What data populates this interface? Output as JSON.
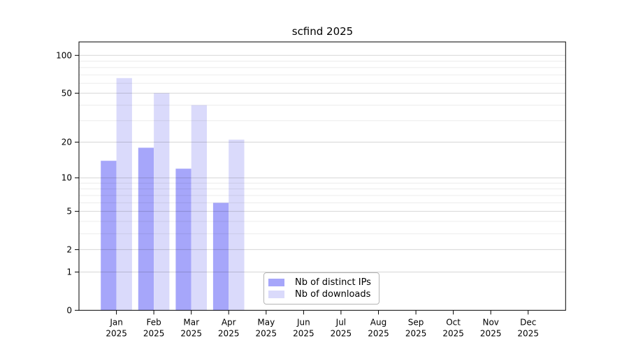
{
  "title": "scfind 2025",
  "chart_data": {
    "type": "bar",
    "title": "scfind 2025",
    "categories": [
      "Jan",
      "Feb",
      "Mar",
      "Apr",
      "May",
      "Jun",
      "Jul",
      "Aug",
      "Sep",
      "Oct",
      "Nov",
      "Dec"
    ],
    "year_label": "2025",
    "series": [
      {
        "name": "Nb of distinct IPs",
        "color": "#a6a6fa",
        "values": [
          14,
          18,
          12,
          6,
          0,
          0,
          0,
          0,
          0,
          0,
          0,
          0
        ]
      },
      {
        "name": "Nb of downloads",
        "color": "#dadafb",
        "values": [
          66,
          50,
          40,
          21,
          0,
          0,
          0,
          0,
          0,
          0,
          0,
          0
        ]
      }
    ],
    "y_scale": "log10(1+v)",
    "y_major_ticks": [
      0,
      1,
      2,
      5,
      10,
      20,
      50,
      100
    ],
    "y_minor_gridlines": [
      3,
      4,
      6,
      7,
      8,
      9,
      30,
      40,
      60,
      70,
      80,
      90
    ],
    "ylim": [
      0,
      128
    ],
    "grid": true,
    "legend_position": "inside lower-left-center",
    "colors": {
      "axis": "#000000",
      "grid_major": "rgba(0,0,0,0.16)",
      "grid_minor": "rgba(0,0,0,0.075)",
      "background": "#ffffff"
    }
  }
}
